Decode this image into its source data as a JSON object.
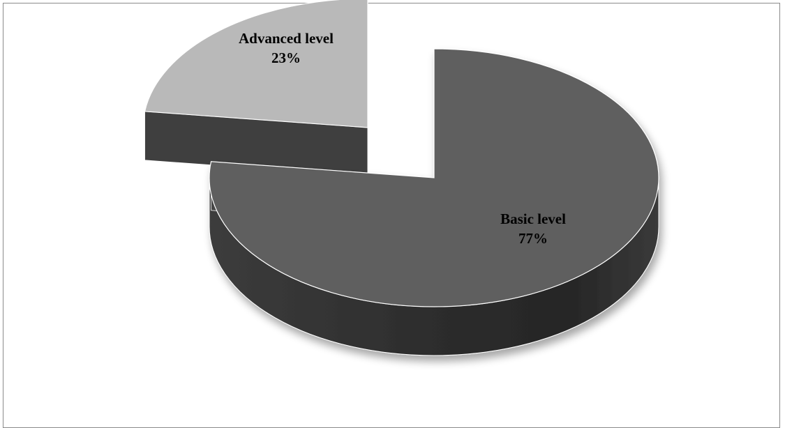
{
  "chart_data": {
    "type": "pie",
    "style": "3d-exploded",
    "slices": [
      {
        "label": "Basic level",
        "value": 77,
        "value_label": "77%",
        "color": "#5f5f5f"
      },
      {
        "label": "Advanced level",
        "value": 23,
        "value_label": "23%",
        "color": "#b9b9b9"
      }
    ],
    "side_colors": {
      "dark": "#2a2a2a",
      "mid": "#4d4d4d"
    },
    "legend": "none"
  }
}
